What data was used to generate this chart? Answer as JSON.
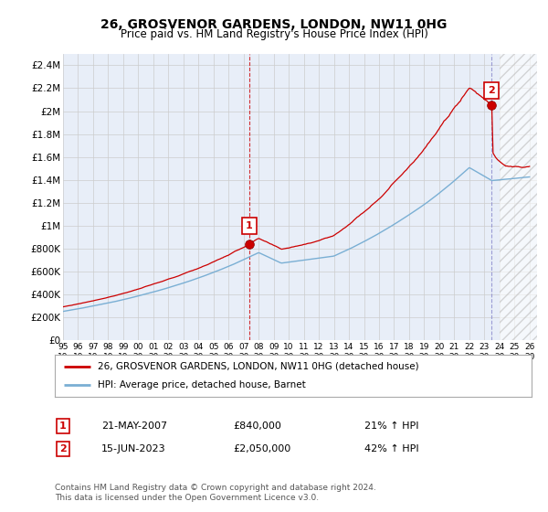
{
  "title": "26, GROSVENOR GARDENS, LONDON, NW11 0HG",
  "subtitle": "Price paid vs. HM Land Registry's House Price Index (HPI)",
  "ylabel_ticks": [
    "£0",
    "£200K",
    "£400K",
    "£600K",
    "£800K",
    "£1M",
    "£1.2M",
    "£1.4M",
    "£1.6M",
    "£1.8M",
    "£2M",
    "£2.2M",
    "£2.4M"
  ],
  "ytick_values": [
    0,
    200000,
    400000,
    600000,
    800000,
    1000000,
    1200000,
    1400000,
    1600000,
    1800000,
    2000000,
    2200000,
    2400000
  ],
  "ylim": [
    0,
    2500000
  ],
  "x_start_year": 1995,
  "x_end_year": 2026,
  "legend_line1": "26, GROSVENOR GARDENS, LONDON, NW11 0HG (detached house)",
  "legend_line2": "HPI: Average price, detached house, Barnet",
  "annotation1_label": "1",
  "annotation1_date": "21-MAY-2007",
  "annotation1_price": "£840,000",
  "annotation1_hpi": "21% ↑ HPI",
  "annotation2_label": "2",
  "annotation2_date": "15-JUN-2023",
  "annotation2_price": "£2,050,000",
  "annotation2_hpi": "42% ↑ HPI",
  "footer": "Contains HM Land Registry data © Crown copyright and database right 2024.\nThis data is licensed under the Open Government Licence v3.0.",
  "line_color_red": "#cc0000",
  "line_color_blue": "#7aafd4",
  "vline1_color": "#cc0000",
  "vline2_color": "#8888cc",
  "annotation_box_color": "#cc0000",
  "grid_color": "#cccccc",
  "background_color": "#ffffff",
  "plot_bg_color": "#e8eef8",
  "hatch_color": "#cccccc",
  "sale1_t": 2007.382,
  "sale1_price": 840000,
  "sale2_t": 2023.454,
  "sale2_price": 2050000
}
